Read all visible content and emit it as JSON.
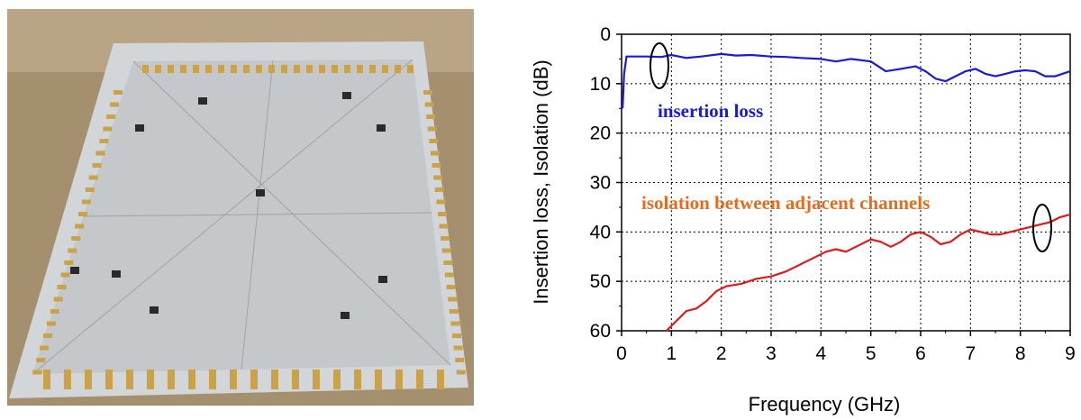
{
  "photo": {
    "subject": "device-photo",
    "colors": {
      "background": "#a08a6e",
      "plate": "#c9cdd0",
      "connectors": "#c9a24a"
    }
  },
  "chart_data": {
    "type": "line",
    "xlabel": "Frequency (GHz)",
    "ylabel": "Insertion loss, Isolation (dB)",
    "xlim": [
      0,
      9
    ],
    "ylim": [
      0,
      60
    ],
    "y_inverted": true,
    "x_ticks": [
      "0",
      "1",
      "2",
      "3",
      "4",
      "5",
      "6",
      "7",
      "8",
      "9"
    ],
    "y_ticks": [
      "0",
      "10",
      "20",
      "30",
      "40",
      "50",
      "60"
    ],
    "grid": true,
    "series": [
      {
        "name": "insertion loss",
        "color": "#1a1adc",
        "x": [
          0.02,
          0.05,
          0.1,
          0.2,
          0.5,
          0.8,
          1.0,
          1.3,
          1.6,
          2.0,
          2.3,
          2.6,
          3.0,
          3.3,
          3.6,
          4.0,
          4.3,
          4.6,
          5.0,
          5.3,
          5.6,
          5.9,
          6.1,
          6.3,
          6.5,
          6.7,
          6.9,
          7.1,
          7.3,
          7.5,
          7.7,
          7.9,
          8.1,
          8.3,
          8.5,
          8.7,
          9.0
        ],
        "y": [
          15,
          8,
          4.5,
          4.5,
          4.5,
          4.6,
          4.2,
          4.8,
          4.5,
          4.0,
          4.3,
          4.2,
          4.5,
          4.6,
          4.8,
          5.0,
          5.5,
          5.0,
          5.5,
          7.5,
          7.0,
          6.5,
          7.5,
          9.0,
          9.5,
          8.5,
          7.5,
          7.0,
          8.0,
          8.5,
          8.0,
          7.5,
          7.3,
          7.5,
          8.5,
          8.5,
          7.5
        ]
      },
      {
        "name": "isolation between adjacent channels",
        "color": "#e01a1a",
        "x": [
          0.9,
          1.1,
          1.3,
          1.5,
          1.7,
          1.9,
          2.1,
          2.4,
          2.7,
          3.0,
          3.3,
          3.6,
          3.9,
          4.1,
          4.3,
          4.5,
          4.7,
          4.9,
          5.0,
          5.2,
          5.4,
          5.6,
          5.8,
          6.0,
          6.2,
          6.4,
          6.6,
          6.8,
          7.0,
          7.2,
          7.4,
          7.6,
          7.8,
          8.0,
          8.2,
          8.4,
          8.6,
          8.8,
          9.0
        ],
        "y": [
          60,
          58,
          56,
          55.5,
          54,
          52,
          51,
          50.5,
          49.5,
          49,
          48,
          46.5,
          45,
          44,
          43.5,
          44,
          43,
          42,
          41.5,
          42,
          43,
          42,
          40.5,
          40,
          41,
          42.5,
          42,
          40.5,
          39.5,
          40,
          40.5,
          40.5,
          40,
          39.5,
          39,
          38.5,
          38,
          37,
          36.5
        ]
      }
    ],
    "annotations": [
      {
        "text": "insertion loss",
        "color": "#1a1adc"
      },
      {
        "text": "isolation between adjacent channels",
        "color": "#e46c1c"
      }
    ]
  }
}
